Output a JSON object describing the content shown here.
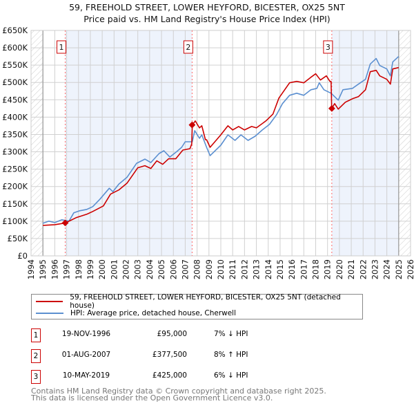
{
  "title": "59, FREEHOLD STREET, LOWER HEYFORD, BICESTER, OX25 5NT",
  "subtitle": "Price paid vs. HM Land Registry's House Price Index (HPI)",
  "colors": {
    "property": "#cc0000",
    "hpi": "#5b8fd0",
    "shade": "#eef3fc",
    "marker_line": "#ff6666"
  },
  "chart_data": {
    "type": "line",
    "title": "59, FREEHOLD STREET, LOWER HEYFORD, BICESTER, OX25 5NT",
    "subtitle": "Price paid vs. HM Land Registry's House Price Index (HPI)",
    "xlim": [
      1994,
      2026
    ],
    "ylim": [
      0,
      650000
    ],
    "grid": true,
    "x_ticks": [
      "1994",
      "1995",
      "1996",
      "1997",
      "1998",
      "1999",
      "2000",
      "2001",
      "2002",
      "2003",
      "2004",
      "2005",
      "2006",
      "2007",
      "2008",
      "2009",
      "2010",
      "2011",
      "2012",
      "2013",
      "2014",
      "2015",
      "2016",
      "2017",
      "2018",
      "2019",
      "2020",
      "2021",
      "2022",
      "2023",
      "2024",
      "2025",
      "2026"
    ],
    "y_ticks": [
      {
        "v": 0,
        "label": "£0"
      },
      {
        "v": 50000,
        "label": "£50K"
      },
      {
        "v": 100000,
        "label": "£100K"
      },
      {
        "v": 150000,
        "label": "£150K"
      },
      {
        "v": 200000,
        "label": "£200K"
      },
      {
        "v": 250000,
        "label": "£250K"
      },
      {
        "v": 300000,
        "label": "£300K"
      },
      {
        "v": 350000,
        "label": "£350K"
      },
      {
        "v": 400000,
        "label": "£400K"
      },
      {
        "v": 450000,
        "label": "£450K"
      },
      {
        "v": 500000,
        "label": "£500K"
      },
      {
        "v": 550000,
        "label": "£550K"
      },
      {
        "v": 600000,
        "label": "£600K"
      },
      {
        "v": 650000,
        "label": "£650K"
      }
    ],
    "series": [
      {
        "name": "59, FREEHOLD STREET, LOWER HEYFORD, BICESTER, OX25 5NT (detached house)",
        "color": "#cc0000",
        "x": [
          1995.0,
          1996.0,
          1996.9,
          1997.8,
          1998.7,
          1999.2,
          2000.1,
          2000.7,
          2001.4,
          2002.1,
          2003.0,
          2003.6,
          2004.1,
          2004.6,
          2005.1,
          2005.6,
          2006.2,
          2006.8,
          2007.4,
          2007.55,
          2007.6,
          2007.85,
          2008.2,
          2008.4,
          2008.7,
          2008.8,
          2009.1,
          2010.0,
          2010.6,
          2011.0,
          2011.5,
          2012.0,
          2012.6,
          2013.0,
          2013.8,
          2014.4,
          2014.9,
          2015.8,
          2016.4,
          2017.0,
          2017.6,
          2018.0,
          2018.4,
          2018.9,
          2019.2,
          2019.3,
          2019.35,
          2019.6,
          2019.9,
          2020.5,
          2021.1,
          2021.6,
          2022.2,
          2022.6,
          2023.1,
          2023.4,
          2024.0,
          2024.3,
          2024.5,
          2025.0
        ],
        "y": [
          88000,
          90000,
          95000,
          110000,
          120000,
          128000,
          144000,
          178000,
          190000,
          210000,
          254000,
          260000,
          252000,
          274000,
          264000,
          280000,
          280000,
          305000,
          309000,
          323000,
          377500,
          389000,
          369000,
          375000,
          335000,
          335000,
          313000,
          349000,
          375000,
          363000,
          373000,
          363000,
          373000,
          369000,
          389000,
          409000,
          455000,
          499000,
          503000,
          499000,
          515000,
          525000,
          507000,
          519000,
          503000,
          503000,
          425000,
          439000,
          423000,
          443000,
          453000,
          459000,
          479000,
          531000,
          535000,
          519000,
          509000,
          495000,
          539000,
          543000
        ]
      },
      {
        "name": "HPI: Average price, detached house, Cherwell",
        "color": "#5b8fd0",
        "x": [
          1995.0,
          1995.5,
          1996.0,
          1996.6,
          1997.2,
          1997.6,
          1998.1,
          1998.7,
          1999.2,
          1999.8,
          2000.6,
          2000.9,
          2001.4,
          2002.1,
          2002.9,
          2003.6,
          2004.1,
          2004.8,
          2005.2,
          2005.7,
          2006.3,
          2006.7,
          2007.0,
          2007.6,
          2007.8,
          2008.2,
          2008.4,
          2008.8,
          2009.1,
          2010.0,
          2010.6,
          2011.2,
          2011.7,
          2012.3,
          2012.9,
          2013.5,
          2014.1,
          2014.7,
          2015.2,
          2015.8,
          2016.4,
          2017.0,
          2017.6,
          2018.1,
          2018.3,
          2018.7,
          2019.3,
          2019.6,
          2019.9,
          2020.3,
          2021.1,
          2021.6,
          2022.2,
          2022.6,
          2023.1,
          2023.4,
          2024.0,
          2024.3,
          2024.5,
          2025.0
        ],
        "y": [
          94000,
          100000,
          96000,
          104000,
          100000,
          124000,
          130000,
          134000,
          142000,
          163000,
          195000,
          185000,
          207000,
          227000,
          267000,
          279000,
          269000,
          295000,
          303000,
          285000,
          301000,
          313000,
          329000,
          329000,
          361000,
          339000,
          349000,
          313000,
          289000,
          319000,
          349000,
          333000,
          349000,
          333000,
          345000,
          363000,
          379000,
          407000,
          439000,
          463000,
          469000,
          463000,
          479000,
          483000,
          499000,
          479000,
          469000,
          459000,
          449000,
          479000,
          483000,
          495000,
          509000,
          553000,
          569000,
          549000,
          539000,
          519000,
          559000,
          575000
        ]
      }
    ],
    "sales": [
      {
        "id": "1",
        "x": 1996.88,
        "y": 95000
      },
      {
        "id": "2",
        "x": 2007.58,
        "y": 377500
      },
      {
        "id": "3",
        "x": 2019.36,
        "y": 425000
      }
    ],
    "data_range": [
      1995,
      2025
    ]
  },
  "legend": {
    "property": "59, FREEHOLD STREET, LOWER HEYFORD, BICESTER, OX25 5NT (detached house)",
    "hpi": "HPI: Average price, detached house, Cherwell"
  },
  "transactions": [
    {
      "id": "1",
      "date": "19-NOV-1996",
      "price": "£95,000",
      "hpi": "7% ↓ HPI"
    },
    {
      "id": "2",
      "date": "01-AUG-2007",
      "price": "£377,500",
      "hpi": "8% ↑ HPI"
    },
    {
      "id": "3",
      "date": "10-MAY-2019",
      "price": "£425,000",
      "hpi": "6% ↓ HPI"
    }
  ],
  "footer": {
    "line1": "Contains HM Land Registry data © Crown copyright and database right 2025.",
    "line2": "This data is licensed under the Open Government Licence v3.0."
  }
}
